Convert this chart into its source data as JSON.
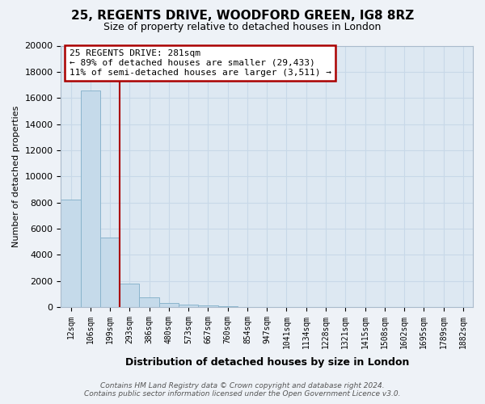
{
  "title_line1": "25, REGENTS DRIVE, WOODFORD GREEN, IG8 8RZ",
  "title_line2": "Size of property relative to detached houses in London",
  "xlabel": "Distribution of detached houses by size in London",
  "ylabel": "Number of detached properties",
  "categories": [
    "12sqm",
    "106sqm",
    "199sqm",
    "293sqm",
    "386sqm",
    "480sqm",
    "573sqm",
    "667sqm",
    "760sqm",
    "854sqm",
    "947sqm",
    "1041sqm",
    "1134sqm",
    "1228sqm",
    "1321sqm",
    "1415sqm",
    "1508sqm",
    "1602sqm",
    "1695sqm",
    "1789sqm",
    "1882sqm"
  ],
  "values": [
    8200,
    16600,
    5300,
    1800,
    750,
    300,
    200,
    150,
    50,
    0,
    0,
    0,
    0,
    0,
    0,
    0,
    0,
    0,
    0,
    0,
    0
  ],
  "bar_color": "#c5daea",
  "bar_edge_color": "#8ab4cc",
  "vline_color": "#aa0000",
  "annotation_text_line1": "25 REGENTS DRIVE: 281sqm",
  "annotation_text_line2": "← 89% of detached houses are smaller (29,433)",
  "annotation_text_line3": "11% of semi-detached houses are larger (3,511) →",
  "annotation_box_color": "#aa0000",
  "ylim": [
    0,
    20000
  ],
  "yticks": [
    0,
    2000,
    4000,
    6000,
    8000,
    10000,
    12000,
    14000,
    16000,
    18000,
    20000
  ],
  "footer_line1": "Contains HM Land Registry data © Crown copyright and database right 2024.",
  "footer_line2": "Contains public sector information licensed under the Open Government Licence v3.0.",
  "bg_color": "#eef2f7",
  "plot_bg_color": "#dde8f2",
  "grid_color": "#c8d8e8",
  "title_fontsize": 11,
  "subtitle_fontsize": 9
}
